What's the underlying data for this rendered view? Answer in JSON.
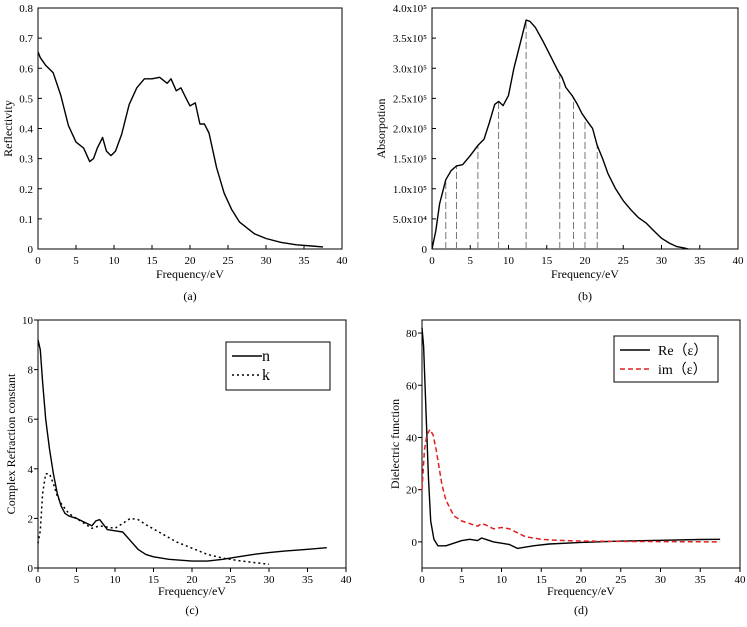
{
  "chart_data": [
    {
      "panel": "a",
      "type": "line",
      "caption": "(a)",
      "xlabel": "Frequency/eV",
      "ylabel": "Reflectivity",
      "xlim": [
        0,
        40
      ],
      "ylim": [
        0,
        0.8
      ],
      "xticks": [
        0,
        5,
        10,
        15,
        20,
        25,
        30,
        35,
        40
      ],
      "yticks": [
        0,
        0.1,
        0.2,
        0.3,
        0.4,
        0.5,
        0.6,
        0.7,
        0.8
      ],
      "ytick_labels": [
        "0",
        "0.1",
        "0.2",
        "0.3",
        "0.4",
        "0.5",
        "0.6",
        "0.7",
        "0.8"
      ],
      "series": [
        {
          "name": "Reflectivity",
          "color": "#000000",
          "dash": "",
          "x": [
            0,
            0.3,
            1,
            2,
            3,
            4,
            5,
            6,
            6.8,
            7.3,
            7.8,
            8.5,
            9,
            9.6,
            10.2,
            11,
            12,
            13,
            14,
            15,
            16,
            17,
            17.5,
            18.2,
            18.8,
            19.4,
            20,
            20.7,
            21.3,
            21.9,
            22.5,
            23.5,
            24.5,
            25.5,
            26.5,
            27.5,
            28.5,
            30,
            32,
            34,
            36,
            37.5
          ],
          "y": [
            0.655,
            0.635,
            0.61,
            0.585,
            0.51,
            0.41,
            0.355,
            0.335,
            0.29,
            0.3,
            0.335,
            0.37,
            0.325,
            0.31,
            0.325,
            0.38,
            0.48,
            0.535,
            0.565,
            0.565,
            0.57,
            0.55,
            0.565,
            0.525,
            0.535,
            0.505,
            0.475,
            0.485,
            0.415,
            0.415,
            0.385,
            0.27,
            0.185,
            0.13,
            0.09,
            0.07,
            0.05,
            0.035,
            0.022,
            0.014,
            0.01,
            0.007
          ]
        }
      ]
    },
    {
      "panel": "b",
      "type": "line",
      "caption": "(b)",
      "xlabel": "Frequency/eV",
      "ylabel": "Absorpotion",
      "xlim": [
        0,
        40
      ],
      "ylim": [
        0,
        400000
      ],
      "xticks": [
        0,
        5,
        10,
        15,
        20,
        25,
        30,
        35,
        40
      ],
      "yticks": [
        0,
        50000,
        100000,
        150000,
        200000,
        250000,
        300000,
        350000,
        400000
      ],
      "ytick_labels": [
        "0",
        "5.0x10⁴",
        "1.0x10⁵",
        "1.5x10⁵",
        "2.0x10⁵",
        "2.5x10⁵",
        "3.0x10⁵",
        "3.5x10⁵",
        "4.0x10⁵"
      ],
      "series": [
        {
          "name": "Absorption",
          "color": "#000000",
          "dash": "",
          "x": [
            0,
            0.5,
            1,
            1.8,
            2.5,
            3.2,
            4,
            5,
            6,
            6.8,
            7.5,
            8.2,
            8.7,
            9.3,
            10,
            10.7,
            11.5,
            12.3,
            12.8,
            13.5,
            14.5,
            15.5,
            16.5,
            17,
            17.5,
            18.3,
            19,
            19.6,
            20.3,
            21,
            21.6,
            22.3,
            23,
            24,
            25,
            26,
            27,
            28,
            29,
            30,
            31,
            32,
            33,
            33.5
          ],
          "y": [
            0,
            30000,
            75000,
            115000,
            130000,
            138000,
            140000,
            155000,
            172000,
            182000,
            210000,
            240000,
            245000,
            238000,
            255000,
            300000,
            340000,
            380000,
            378000,
            368000,
            345000,
            320000,
            295000,
            285000,
            268000,
            255000,
            240000,
            225000,
            212000,
            200000,
            172000,
            150000,
            125000,
            100000,
            80000,
            65000,
            52000,
            43000,
            30000,
            18000,
            10000,
            4000,
            1500,
            0
          ]
        }
      ],
      "drop_lines_x": [
        1.8,
        3.2,
        6,
        8.7,
        12.3,
        16.7,
        18.5,
        20,
        21.6
      ]
    },
    {
      "panel": "c",
      "type": "line",
      "caption": "(c)",
      "xlabel": "Frequency/eV",
      "ylabel": "Complex Refraction constant",
      "xlim": [
        0,
        40
      ],
      "ylim": [
        0,
        10
      ],
      "xticks": [
        0,
        5,
        10,
        15,
        20,
        25,
        30,
        35,
        40
      ],
      "yticks": [
        0,
        2,
        4,
        6,
        8,
        10
      ],
      "ytick_labels": [
        "0",
        "2",
        "4",
        "6",
        "8",
        "10"
      ],
      "legend": [
        "n",
        "k"
      ],
      "series": [
        {
          "name": "n",
          "color": "#000000",
          "dash": "",
          "x": [
            0,
            0.3,
            0.6,
            1,
            1.5,
            2,
            2.5,
            3,
            3.5,
            4,
            5,
            6,
            7,
            7.5,
            8,
            8.5,
            9,
            10,
            11,
            12,
            13,
            14,
            15,
            17,
            20,
            22,
            24,
            26,
            28,
            30,
            32,
            34,
            36,
            37.5
          ],
          "y": [
            9.2,
            8.8,
            7.5,
            6.0,
            4.8,
            3.8,
            3.0,
            2.5,
            2.2,
            2.1,
            2.0,
            1.85,
            1.7,
            1.9,
            1.95,
            1.75,
            1.55,
            1.5,
            1.45,
            1.1,
            0.75,
            0.55,
            0.45,
            0.35,
            0.28,
            0.28,
            0.35,
            0.45,
            0.55,
            0.62,
            0.68,
            0.73,
            0.78,
            0.82
          ]
        },
        {
          "name": "k",
          "color": "#000000",
          "dash": "2,3",
          "x": [
            0,
            0.3,
            0.6,
            1,
            1.5,
            2,
            2.5,
            3,
            4,
            5,
            6,
            7,
            8,
            9,
            10,
            11,
            12,
            13,
            14,
            16,
            18,
            20,
            22,
            24,
            26,
            28,
            30
          ],
          "y": [
            1.0,
            1.5,
            3.0,
            3.8,
            3.8,
            3.4,
            2.9,
            2.6,
            2.2,
            2.0,
            1.8,
            1.6,
            1.7,
            1.65,
            1.6,
            1.8,
            2.0,
            1.95,
            1.75,
            1.4,
            1.05,
            0.8,
            0.55,
            0.4,
            0.3,
            0.22,
            0.15
          ]
        }
      ]
    },
    {
      "panel": "d",
      "type": "line",
      "caption": "(d)",
      "xlabel": "Frequency/eV",
      "ylabel": "Dielectric function",
      "xlim": [
        0,
        40
      ],
      "ylim": [
        -10,
        85
      ],
      "xticks": [
        0,
        5,
        10,
        15,
        20,
        25,
        30,
        35,
        40
      ],
      "yticks": [
        0,
        20,
        40,
        60,
        80
      ],
      "ytick_labels": [
        "0",
        "20",
        "40",
        "60",
        "80"
      ],
      "legend": [
        "Re（ε）",
        "im（ε）"
      ],
      "series": [
        {
          "name": "Re（ε）",
          "color": "#000000",
          "dash": "",
          "x": [
            0,
            0.2,
            0.5,
            0.8,
            1.1,
            1.5,
            2,
            2.5,
            3,
            4,
            5,
            6,
            7,
            7.5,
            8,
            9,
            10,
            11,
            12,
            14,
            16,
            20,
            25,
            30,
            35,
            37.5
          ],
          "y": [
            82,
            75,
            50,
            25,
            8,
            1,
            -1.5,
            -1.5,
            -1.5,
            -0.5,
            0.5,
            1,
            0.5,
            1.5,
            1,
            0,
            -0.5,
            -1,
            -2.5,
            -1.5,
            -0.8,
            -0.2,
            0.3,
            0.6,
            0.9,
            1.0
          ]
        },
        {
          "name": "im（ε）",
          "color": "#e02020",
          "dash": "5,3",
          "x": [
            0,
            0.3,
            0.6,
            1,
            1.4,
            1.8,
            2.5,
            3,
            4,
            5,
            6,
            7,
            7.5,
            8,
            9,
            10,
            11,
            12,
            13,
            15,
            17,
            20,
            25,
            30,
            35,
            37.5
          ],
          "y": [
            20,
            35,
            41,
            43,
            41,
            35,
            22,
            16,
            10,
            8,
            7,
            6,
            7,
            6.5,
            5,
            5.5,
            5,
            3.5,
            2,
            1,
            0.6,
            0.3,
            0.2,
            0.1,
            0.05,
            0
          ]
        }
      ]
    }
  ]
}
